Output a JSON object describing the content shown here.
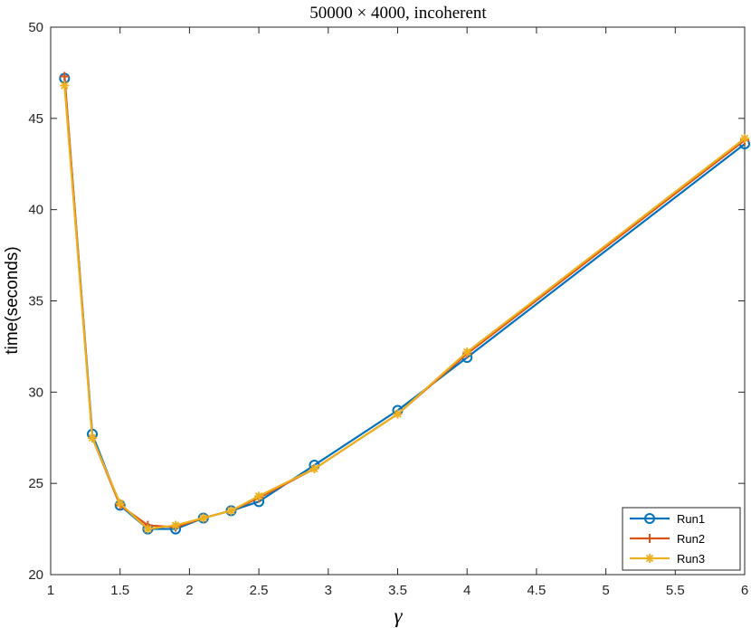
{
  "chart_data": {
    "type": "line",
    "title": "50000 × 4000, incoherent",
    "xlabel": "γ",
    "ylabel": "time(seconds)",
    "xlim": [
      1,
      6
    ],
    "ylim": [
      20,
      50
    ],
    "xticks": [
      "1",
      "1.5",
      "2",
      "2.5",
      "3",
      "3.5",
      "4",
      "4.5",
      "5",
      "5.5",
      "6"
    ],
    "yticks": [
      "20",
      "25",
      "30",
      "35",
      "40",
      "45",
      "50"
    ],
    "legend_position": "bottom-right",
    "grid": false,
    "x": [
      1.1,
      1.3,
      1.5,
      1.7,
      1.9,
      2.1,
      2.3,
      2.5,
      2.9,
      3.5,
      4.0,
      6.0
    ],
    "series": [
      {
        "name": "Run1",
        "color": "#0072BD",
        "marker": "circle",
        "values": [
          47.2,
          27.7,
          23.8,
          22.5,
          22.5,
          23.1,
          23.5,
          24.0,
          26.0,
          29.0,
          31.9,
          43.6
        ]
      },
      {
        "name": "Run2",
        "color": "#D95319",
        "marker": "plus",
        "values": [
          47.3,
          27.5,
          23.8,
          22.7,
          22.6,
          23.1,
          23.5,
          24.2,
          25.8,
          28.8,
          32.1,
          43.8
        ]
      },
      {
        "name": "Run3",
        "color": "#EDB120",
        "marker": "asterisk",
        "values": [
          46.8,
          27.5,
          23.9,
          22.5,
          22.7,
          23.1,
          23.5,
          24.3,
          25.8,
          28.8,
          32.2,
          43.9
        ]
      }
    ]
  }
}
